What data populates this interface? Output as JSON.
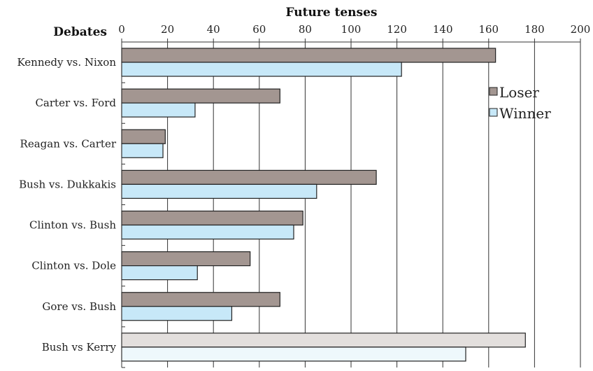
{
  "chart_data": {
    "type": "bar",
    "orientation": "horizontal",
    "title": "Future tenses",
    "ylabel": "Debates",
    "xlim": [
      0,
      200
    ],
    "x_ticks": [
      0,
      20,
      40,
      60,
      80,
      100,
      120,
      140,
      160,
      180,
      200
    ],
    "x_tick_labels": [
      "0",
      "20",
      "40",
      "60",
      "80",
      "100",
      "120",
      "140",
      "160",
      "180",
      "200"
    ],
    "grid": true,
    "legend_position": "top-right",
    "categories": [
      "Kennedy vs. Nixon",
      "Carter vs. Ford",
      "Reagan vs. Carter",
      "Bush vs. Dukkakis",
      "Clinton vs. Bush",
      "Clinton vs. Dole",
      "Gore vs. Bush",
      "Bush vs Kerry"
    ],
    "series": [
      {
        "name": "Loser",
        "color": "#a39691",
        "values": [
          163,
          69,
          19,
          111,
          79,
          56,
          69,
          176
        ]
      },
      {
        "name": "Winner",
        "color": "#c7e8f8",
        "values": [
          122,
          32,
          18,
          85,
          75,
          33,
          48,
          150
        ]
      }
    ],
    "highlight_last_category_colors": {
      "Loser": "#e3dfdd",
      "Winner": "#eef8fc"
    }
  }
}
